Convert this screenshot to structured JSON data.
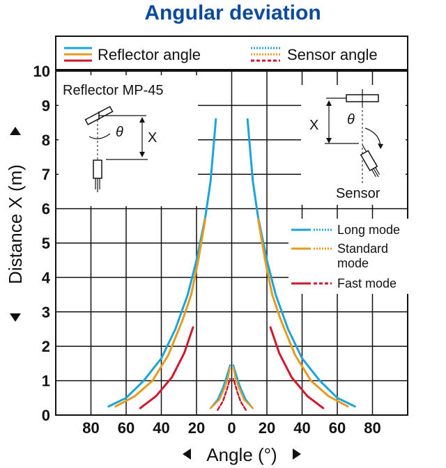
{
  "chart_data": {
    "type": "line",
    "title": "Angular deviation",
    "xlabel": "Angle (°)",
    "ylabel": "Distance X (m)",
    "xlim": [
      -100,
      100
    ],
    "ylim": [
      0,
      10
    ],
    "x_ticks": [
      "80",
      "60",
      "40",
      "20",
      "0",
      "20",
      "40",
      "60",
      "80"
    ],
    "y_ticks": [
      "0",
      "1",
      "2",
      "3",
      "4",
      "5",
      "6",
      "7",
      "8",
      "9",
      "10"
    ],
    "grid": true,
    "legend": {
      "reflector": "Reflector angle",
      "sensor": "Sensor angle",
      "long": "Long mode",
      "standard_line1": "Standard",
      "standard_line2": "mode",
      "fast": "Fast mode"
    },
    "inset_left": {
      "title": "Reflector MP-45",
      "theta": "θ",
      "x": "X"
    },
    "inset_right": {
      "theta": "θ",
      "x": "X",
      "sensor": "Sensor"
    },
    "colors": {
      "long": "#1aa3dc",
      "standard": "#e89a1a",
      "fast": "#d0172b",
      "title": "#0b4a9e"
    },
    "series": [
      {
        "name": "Long mode",
        "kind": "reflector",
        "color": "#1aa3dc",
        "points": [
          [
            70,
            0.25
          ],
          [
            60,
            0.5
          ],
          [
            50,
            1.0
          ],
          [
            40,
            1.65
          ],
          [
            32,
            2.5
          ],
          [
            25,
            3.5
          ],
          [
            20,
            4.5
          ],
          [
            15,
            5.75
          ],
          [
            12,
            6.8
          ],
          [
            9,
            8.6
          ]
        ]
      },
      {
        "name": "Standard mode",
        "kind": "reflector",
        "color": "#e89a1a",
        "points": [
          [
            66,
            0.25
          ],
          [
            55,
            0.55
          ],
          [
            45,
            1.0
          ],
          [
            36,
            1.75
          ],
          [
            28,
            2.75
          ],
          [
            23,
            3.5
          ],
          [
            19,
            4.5
          ],
          [
            15,
            5.7
          ]
        ]
      },
      {
        "name": "Fast mode",
        "kind": "reflector",
        "color": "#d0172b",
        "points": [
          [
            52,
            0.2
          ],
          [
            43,
            0.55
          ],
          [
            34,
            1.1
          ],
          [
            27,
            1.8
          ],
          [
            22,
            2.55
          ]
        ]
      },
      {
        "name": "Long mode",
        "kind": "sensor",
        "color": "#1aa3dc",
        "points": [
          [
            12,
            0.2
          ],
          [
            8,
            0.45
          ],
          [
            5,
            0.8
          ],
          [
            3,
            1.1
          ],
          [
            1,
            1.45
          ]
        ]
      },
      {
        "name": "Standard mode",
        "kind": "sensor",
        "color": "#e89a1a",
        "points": [
          [
            12,
            0.2
          ],
          [
            7,
            0.45
          ],
          [
            4,
            0.8
          ],
          [
            2,
            1.1
          ],
          [
            1,
            1.4
          ]
        ]
      },
      {
        "name": "Fast mode",
        "kind": "sensor",
        "color": "#d0172b",
        "points": [
          [
            8,
            0.15
          ],
          [
            5,
            0.4
          ],
          [
            3,
            0.7
          ],
          [
            1,
            1.05
          ]
        ]
      }
    ]
  }
}
